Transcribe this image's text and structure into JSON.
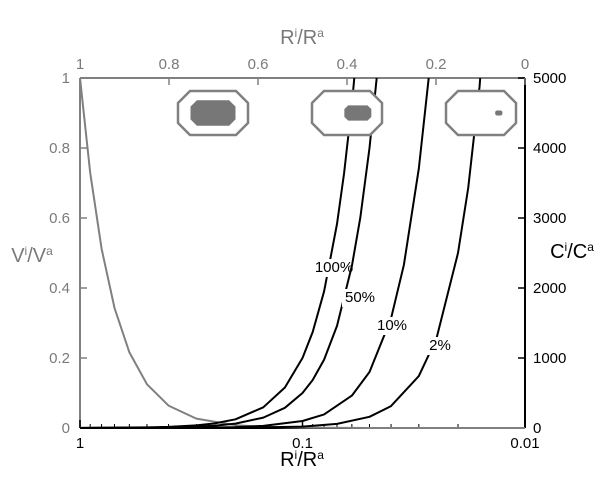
{
  "chart_data": {
    "type": "line",
    "x_axis_bottom": {
      "label_main": "R",
      "label_sup1": "i",
      "label_mid": "/R",
      "label_sup2": "a",
      "scale": "log",
      "range": [
        1,
        0.01
      ],
      "ticks": [
        {
          "value": 1,
          "label": "1"
        },
        {
          "value": 0.1,
          "label": "0.1"
        },
        {
          "value": 0.01,
          "label": "0.01"
        }
      ]
    },
    "x_axis_top": {
      "label_main": "R",
      "label_sup1": "i",
      "label_mid": "/R",
      "label_sup2": "a",
      "scale": "linear",
      "range": [
        1,
        0
      ],
      "ticks": [
        {
          "value": 1,
          "label": "1"
        },
        {
          "value": 0.8,
          "label": "0.8"
        },
        {
          "value": 0.6,
          "label": "0.6"
        },
        {
          "value": 0.4,
          "label": "0.4"
        },
        {
          "value": 0.2,
          "label": "0.2"
        },
        {
          "value": 0,
          "label": "0"
        }
      ]
    },
    "y_axis_left": {
      "label_main": "V",
      "label_sup1": "i",
      "label_mid": "/V",
      "label_sup2": "a",
      "range": [
        0,
        1
      ],
      "color": "#7a7a7a",
      "ticks": [
        {
          "value": 0,
          "label": "0"
        },
        {
          "value": 0.2,
          "label": "0.2"
        },
        {
          "value": 0.4,
          "label": "0.4"
        },
        {
          "value": 0.6,
          "label": "0.6"
        },
        {
          "value": 0.8,
          "label": "0.8"
        },
        {
          "value": 1,
          "label": "1"
        }
      ]
    },
    "y_axis_right": {
      "label_main": "C",
      "label_sup1": "i",
      "label_mid": "/C",
      "label_sup2": "a",
      "range": [
        0,
        5000
      ],
      "color": "#000000",
      "ticks": [
        {
          "value": 0,
          "label": "0"
        },
        {
          "value": 1000,
          "label": "1000"
        },
        {
          "value": 2000,
          "label": "2000"
        },
        {
          "value": 3000,
          "label": "3000"
        },
        {
          "value": 4000,
          "label": "4000"
        },
        {
          "value": 5000,
          "label": "5000"
        }
      ]
    },
    "series": [
      {
        "axis": "left",
        "color": "#808080",
        "points": [
          [
            1.0,
            1.0
          ],
          [
            0.9,
            0.729
          ],
          [
            0.8,
            0.512
          ],
          [
            0.7,
            0.343
          ],
          [
            0.6,
            0.216
          ],
          [
            0.5,
            0.125
          ],
          [
            0.4,
            0.064
          ],
          [
            0.3,
            0.027
          ],
          [
            0.2,
            0.008
          ],
          [
            0.15,
            0.003375
          ],
          [
            0.1,
            0.001
          ],
          [
            0.05,
            0.000125
          ],
          [
            0.01,
            1e-06
          ]
        ]
      },
      {
        "axis": "right",
        "color": "#000000",
        "label": "100%",
        "points": [
          [
            1.0,
            1
          ],
          [
            0.5,
            8
          ],
          [
            0.4,
            16
          ],
          [
            0.3,
            37
          ],
          [
            0.25,
            64
          ],
          [
            0.2,
            125
          ],
          [
            0.15,
            296
          ],
          [
            0.12,
            579
          ],
          [
            0.1,
            1000
          ],
          [
            0.09,
            1372
          ],
          [
            0.08,
            1953
          ],
          [
            0.07,
            2915
          ],
          [
            0.065,
            3641
          ],
          [
            0.06,
            4630
          ],
          [
            0.0585,
            5000
          ]
        ]
      },
      {
        "axis": "right",
        "color": "#000000",
        "label": "50%",
        "points": [
          [
            1.0,
            0.5
          ],
          [
            0.5,
            4
          ],
          [
            0.4,
            8
          ],
          [
            0.3,
            19
          ],
          [
            0.25,
            32
          ],
          [
            0.2,
            63
          ],
          [
            0.15,
            148
          ],
          [
            0.12,
            289
          ],
          [
            0.1,
            500
          ],
          [
            0.09,
            686
          ],
          [
            0.08,
            977
          ],
          [
            0.07,
            1458
          ],
          [
            0.06,
            2315
          ],
          [
            0.055,
            3005
          ],
          [
            0.05,
            4000
          ],
          [
            0.0464,
            5000
          ]
        ]
      },
      {
        "axis": "right",
        "color": "#000000",
        "label": "10%",
        "points": [
          [
            1.0,
            0.1
          ],
          [
            0.5,
            0.8
          ],
          [
            0.3,
            4
          ],
          [
            0.2,
            13
          ],
          [
            0.15,
            30
          ],
          [
            0.1,
            100
          ],
          [
            0.08,
            195
          ],
          [
            0.06,
            463
          ],
          [
            0.05,
            800
          ],
          [
            0.04,
            1563
          ],
          [
            0.035,
            2332
          ],
          [
            0.03,
            3704
          ],
          [
            0.0271,
            5000
          ]
        ]
      },
      {
        "axis": "right",
        "color": "#000000",
        "label": "2%",
        "points": [
          [
            1.0,
            0.02
          ],
          [
            0.5,
            0.16
          ],
          [
            0.3,
            0.74
          ],
          [
            0.2,
            2.5
          ],
          [
            0.1,
            20
          ],
          [
            0.07,
            58
          ],
          [
            0.05,
            160
          ],
          [
            0.04,
            313
          ],
          [
            0.03,
            741
          ],
          [
            0.025,
            1280
          ],
          [
            0.02,
            2500
          ],
          [
            0.018,
            3429
          ],
          [
            0.016,
            4883
          ],
          [
            0.0159,
            5000
          ]
        ]
      }
    ],
    "insets": [
      {
        "description": "octagon-large-fill",
        "fill_ratio": 0.75
      },
      {
        "description": "octagon-medium-fill",
        "fill_ratio": 0.45
      },
      {
        "description": "octagon-small-fill",
        "fill_ratio": 0.12
      }
    ],
    "grid": false,
    "legend": "none"
  }
}
